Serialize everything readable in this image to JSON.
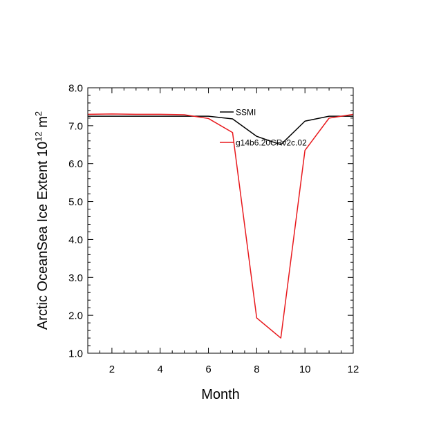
{
  "chart_data": {
    "type": "line",
    "title": "",
    "xlabel": "Month",
    "ylabel": {
      "prefix": "Arctic OceanSea Ice Extent 10",
      "exponent": "12",
      "unit": " m",
      "unit_exponent": "2"
    },
    "xlim": [
      1,
      12
    ],
    "ylim": [
      1.0,
      8.0
    ],
    "x_ticks": [
      2,
      4,
      6,
      8,
      10,
      12
    ],
    "x_tick_labels": [
      "2",
      "4",
      "6",
      "8",
      "10",
      "12"
    ],
    "y_ticks": [
      1.0,
      2.0,
      3.0,
      4.0,
      5.0,
      6.0,
      7.0,
      8.0
    ],
    "y_tick_labels": [
      "1.0",
      "2.0",
      "3.0",
      "4.0",
      "5.0",
      "6.0",
      "7.0",
      "8.0"
    ],
    "grid": false,
    "legend_position": "top-right, inside plot",
    "x": [
      1,
      2,
      3,
      4,
      5,
      6,
      7,
      8,
      9,
      10,
      11,
      12
    ],
    "series": [
      {
        "name": "SSMI",
        "color": "#000000",
        "values": [
          7.25,
          7.25,
          7.25,
          7.25,
          7.25,
          7.25,
          7.18,
          6.72,
          6.5,
          7.12,
          7.25,
          7.25
        ]
      },
      {
        "name": "g14b6.20CRv2c.02",
        "color": "#e8191d",
        "values": [
          7.3,
          7.31,
          7.3,
          7.3,
          7.29,
          7.19,
          6.82,
          1.93,
          1.4,
          6.35,
          7.2,
          7.3
        ]
      }
    ]
  }
}
